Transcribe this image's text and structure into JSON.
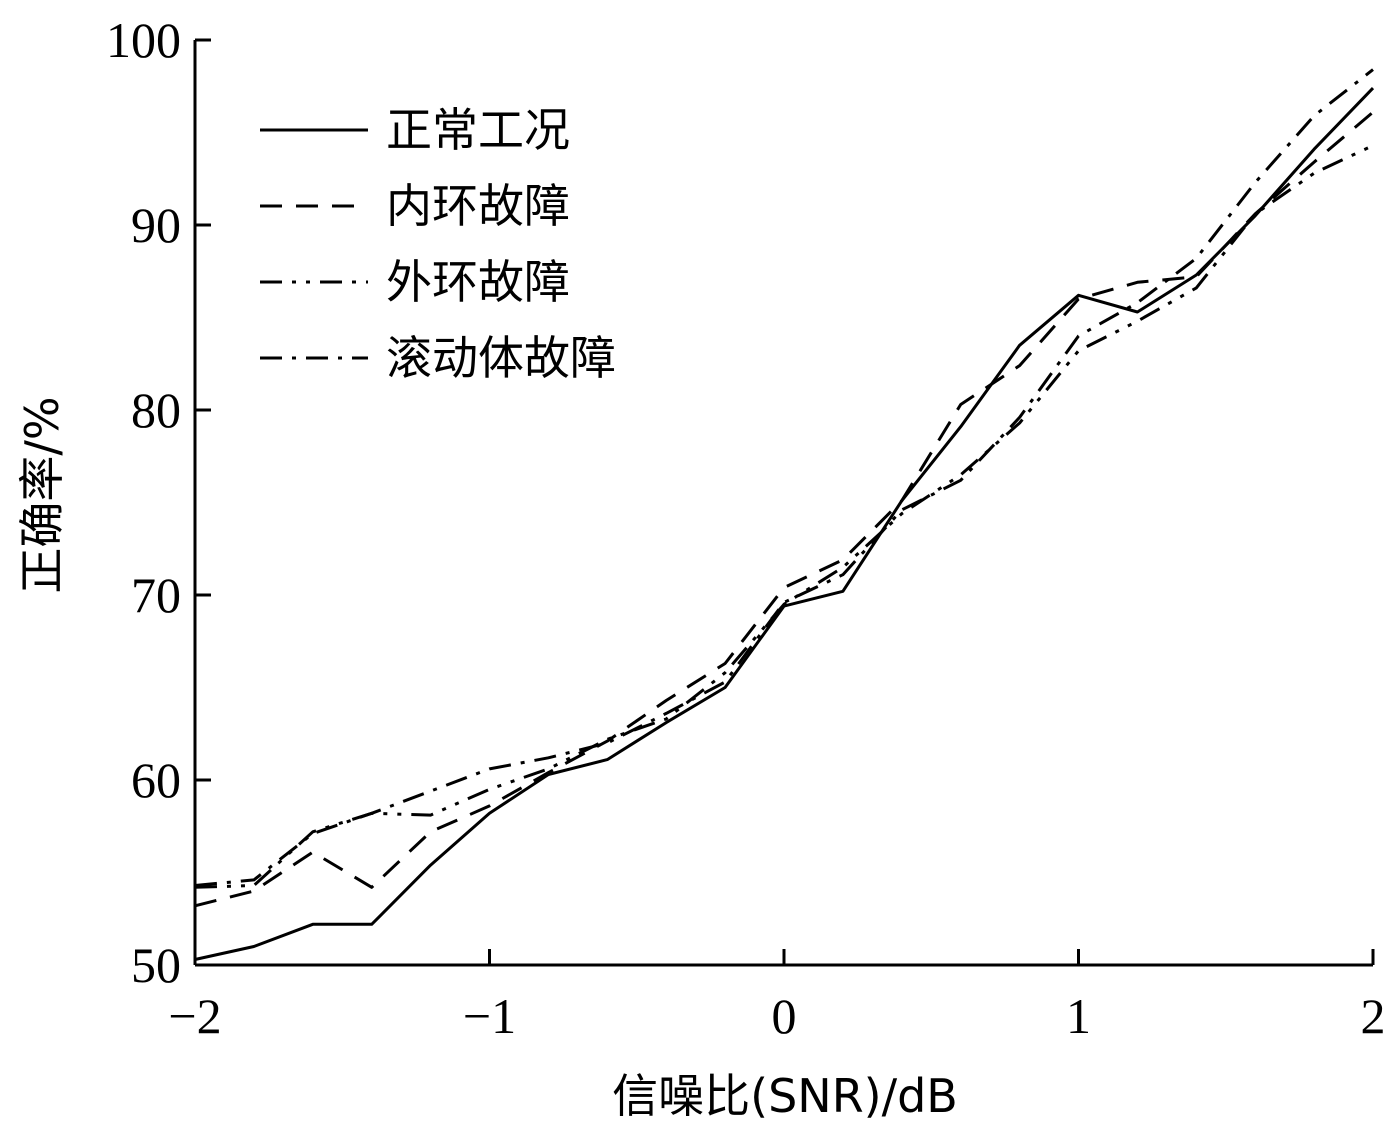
{
  "chart_data": {
    "type": "line",
    "xlabel": "信噪比(SNR)/dB",
    "ylabel": "正确率/%",
    "xlim": [
      -2,
      2
    ],
    "ylim": [
      50,
      100
    ],
    "x_ticks": [
      -2,
      -1,
      0,
      1,
      2
    ],
    "x_tick_labels": [
      "−2",
      "−1",
      "0",
      "1",
      "2"
    ],
    "y_ticks": [
      50,
      60,
      70,
      80,
      90,
      100
    ],
    "y_tick_labels": [
      "50",
      "60",
      "70",
      "80",
      "90",
      "100"
    ],
    "grid": false,
    "legend_position": "top-left",
    "x": [
      -2,
      -1.8,
      -1.6,
      -1.4,
      -1.2,
      -1,
      -0.8,
      -0.6,
      -0.4,
      -0.2,
      0,
      0.2,
      0.4,
      0.6,
      0.8,
      1,
      1.2,
      1.4,
      1.6,
      1.8,
      2
    ],
    "series": [
      {
        "name": "正常工况",
        "dash": "solid",
        "color": "#000000",
        "values": [
          50.3,
          51.0,
          52.2,
          52.2,
          55.4,
          58.2,
          60.3,
          61.1,
          63.1,
          65.0,
          69.4,
          70.2,
          75.1,
          79.1,
          83.5,
          86.2,
          85.3,
          87.3,
          90.5,
          94.1,
          97.4
        ]
      },
      {
        "name": "内环故障",
        "dash": "dashed",
        "color": "#000000",
        "values": [
          53.2,
          54.0,
          56.1,
          54.2,
          57.2,
          58.6,
          60.4,
          62.1,
          64.3,
          66.3,
          70.4,
          71.9,
          75.1,
          80.3,
          82.4,
          86.0,
          86.9,
          87.2,
          90.6,
          93.4,
          96.1
        ]
      },
      {
        "name": "外环故障",
        "dash": "dash-dot-dot",
        "color": "#000000",
        "values": [
          54.2,
          54.3,
          57.2,
          58.2,
          58.1,
          59.5,
          60.6,
          62.2,
          63.3,
          65.8,
          69.5,
          71.5,
          74.4,
          76.5,
          79.3,
          83.2,
          84.8,
          86.6,
          90.6,
          92.8,
          94.3
        ]
      },
      {
        "name": "滚动体故障",
        "dash": "dash-dot",
        "color": "#000000",
        "values": [
          54.3,
          54.6,
          57.1,
          58.2,
          59.4,
          60.6,
          61.2,
          62.0,
          63.6,
          65.3,
          69.6,
          71.1,
          74.6,
          76.2,
          79.6,
          84.0,
          85.8,
          88.2,
          92.3,
          95.9,
          98.4
        ]
      }
    ]
  }
}
